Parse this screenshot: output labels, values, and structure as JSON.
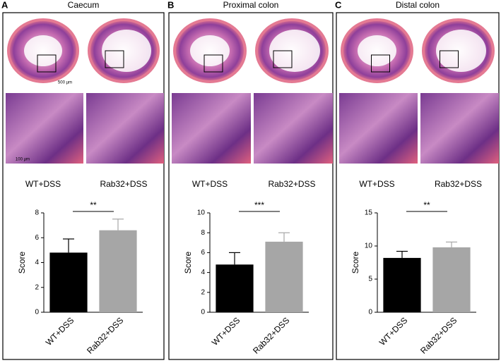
{
  "panels": [
    {
      "label": "A",
      "title": "Caecum",
      "image_labels": [
        "WT+DSS",
        "Rab32+DSS"
      ],
      "scale_labels": [
        "500 µm",
        "100 µm"
      ]
    },
    {
      "label": "B",
      "title": "Proximal colon",
      "image_labels": [
        "WT+DSS",
        "Rab32+DSS"
      ]
    },
    {
      "label": "C",
      "title": "Distal colon",
      "image_labels": [
        "WT+DSS",
        "Rab32+DSS"
      ]
    }
  ],
  "chart_data": [
    {
      "type": "bar",
      "y_label": "Score",
      "categories": [
        "WT+DSS",
        "Rab32+DSS"
      ],
      "values": [
        4.8,
        6.6
      ],
      "errors": [
        1.1,
        0.9
      ],
      "colors": [
        "#000000",
        "#a6a6a6"
      ],
      "ylim": [
        0,
        8
      ],
      "yticks": [
        0,
        2,
        4,
        6,
        8
      ],
      "significance": "**"
    },
    {
      "type": "bar",
      "y_label": "Score",
      "categories": [
        "WT+DSS",
        "Rab32+DSS"
      ],
      "values": [
        4.8,
        7.1
      ],
      "errors": [
        1.2,
        0.9
      ],
      "colors": [
        "#000000",
        "#a6a6a6"
      ],
      "ylim": [
        0,
        10
      ],
      "yticks": [
        0,
        2,
        4,
        6,
        8,
        10
      ],
      "significance": "***"
    },
    {
      "type": "bar",
      "y_label": "Score",
      "categories": [
        "WT+DSS",
        "Rab32+DSS"
      ],
      "values": [
        8.2,
        9.8
      ],
      "errors": [
        1.0,
        0.8
      ],
      "colors": [
        "#000000",
        "#a6a6a6"
      ],
      "ylim": [
        0,
        15
      ],
      "yticks": [
        0,
        5,
        10,
        15
      ],
      "significance": "**"
    }
  ]
}
